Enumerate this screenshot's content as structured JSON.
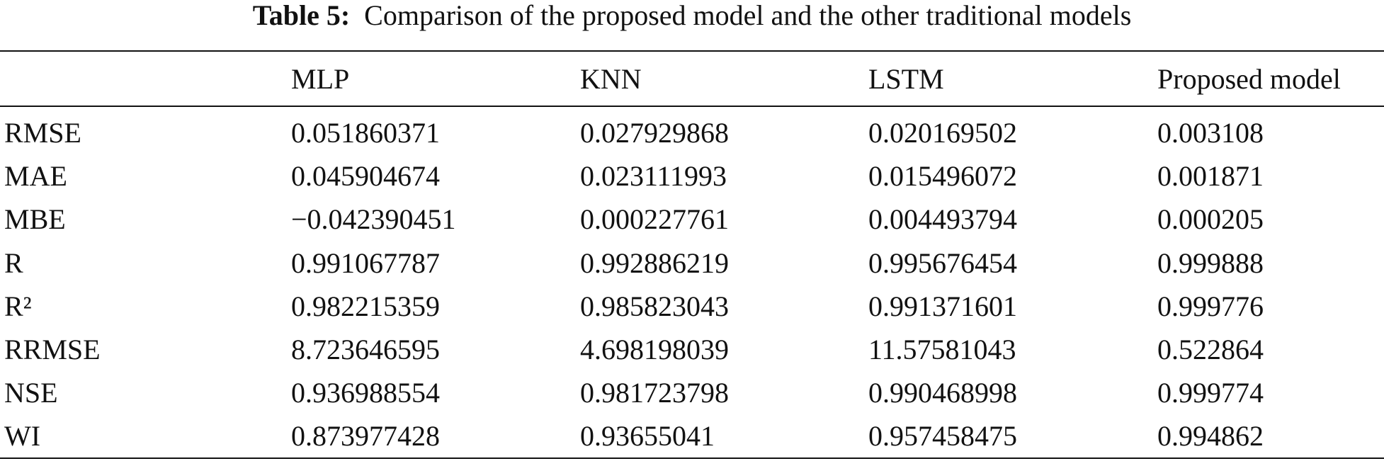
{
  "caption": {
    "label": "Table 5:",
    "text": "Comparison of the proposed model and the other traditional models"
  },
  "table": {
    "header": [
      "MLP",
      "KNN",
      "LSTM",
      "Proposed model"
    ],
    "rows": [
      [
        "RMSE",
        "0.051860371",
        "0.027929868",
        "0.020169502",
        "0.003108"
      ],
      [
        "MAE",
        "0.045904674",
        "0.023111993",
        "0.015496072",
        "0.001871"
      ],
      [
        "MBE",
        "−0.042390451",
        "0.000227761",
        "0.004493794",
        "0.000205"
      ],
      [
        "R",
        "0.991067787",
        "0.992886219",
        "0.995676454",
        "0.999888"
      ],
      [
        "R²",
        "0.982215359",
        "0.985823043",
        "0.991371601",
        "0.999776"
      ],
      [
        "RRMSE",
        "8.723646595",
        "4.698198039",
        "11.57581043",
        "0.522864"
      ],
      [
        "NSE",
        "0.936988554",
        "0.981723798",
        "0.990468998",
        "0.999774"
      ],
      [
        "WI",
        "0.873977428",
        "0.93655041",
        "0.957458475",
        "0.994862"
      ]
    ]
  }
}
